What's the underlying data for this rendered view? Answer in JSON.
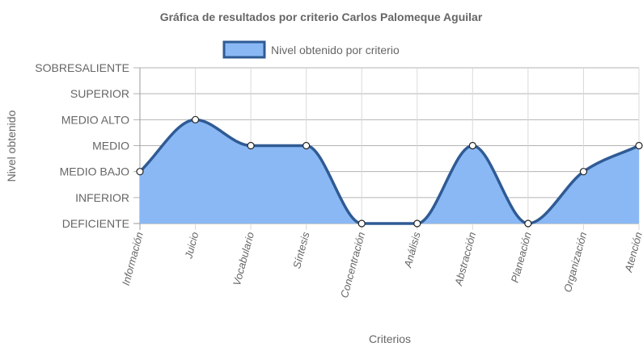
{
  "chart_data": {
    "type": "area",
    "title": "Gráfica de resultados por criterio Carlos Palomeque Aguilar",
    "xlabel": "Criterios",
    "ylabel": "Nivel obtenido",
    "levels": [
      "DEFICIENTE",
      "INFERIOR",
      "MEDIO BAJO",
      "MEDIO",
      "MEDIO ALTO",
      "SUPERIOR",
      "SOBRESALIENTE"
    ],
    "categories": [
      "Información",
      "Juicio",
      "Vocabulario",
      "Síntesis",
      "Concentración",
      "Análisis",
      "Abstracción",
      "Planeación",
      "Organización",
      "Atención"
    ],
    "series": [
      {
        "name": "Nivel obtenido por criterio",
        "values": [
          "MEDIO BAJO",
          "MEDIO ALTO",
          "MEDIO",
          "MEDIO",
          "DEFICIENTE",
          "DEFICIENTE",
          "MEDIO",
          "DEFICIENTE",
          "MEDIO BAJO",
          "MEDIO"
        ]
      }
    ],
    "legend_position": "top",
    "grid": true,
    "fill_color": "#8ab8f5",
    "line_color": "#2f5b94"
  }
}
